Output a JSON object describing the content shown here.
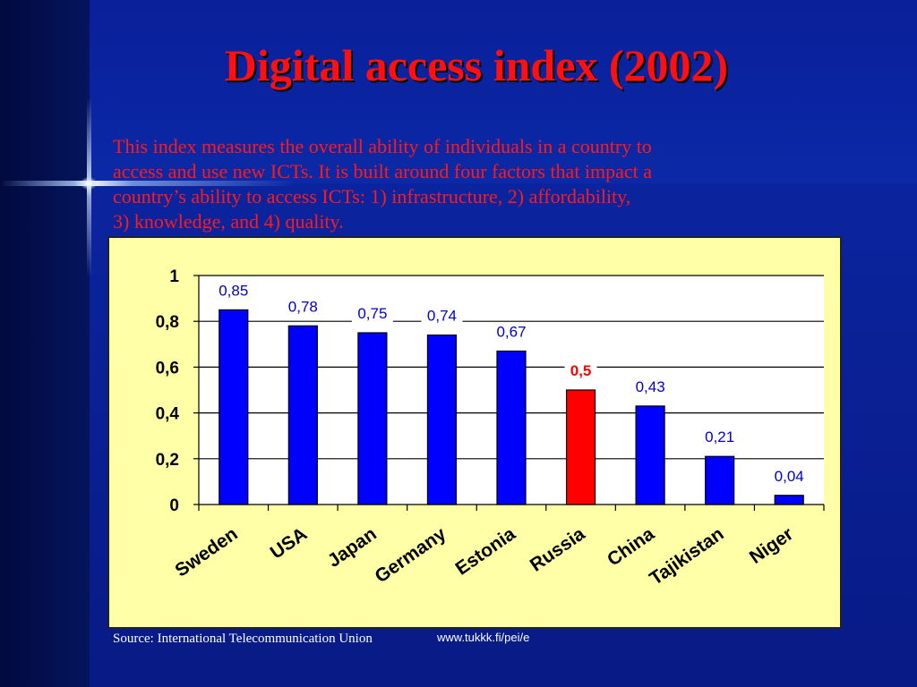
{
  "slide": {
    "title": "Digital access index (2002)",
    "description": "This index measures the overall ability of individuals in a country to\naccess and use new ICTs. It is built around four factors that impact a\ncountry’s ability to access ICTs: 1) infrastructure,  2) affordability,\n3) knowledge, and 4) quality.",
    "source": "Source: International Telecommunication Union",
    "url": "www.tukkk.fi/pei/e"
  },
  "colors": {
    "bar": "#0000ff",
    "highlight_bar": "#ff0000",
    "plot_background": "#ffffff",
    "chart_background": "#ffffa8",
    "label": "#0000cc",
    "highlight_label": "#ff0000"
  },
  "chart_data": {
    "type": "bar",
    "categories": [
      "Sweden",
      "USA",
      "Japan",
      "Germany",
      "Estonia",
      "Russia",
      "China",
      "Tajikistan",
      "Niger"
    ],
    "values": [
      0.85,
      0.78,
      0.75,
      0.74,
      0.67,
      0.5,
      0.43,
      0.21,
      0.04
    ],
    "value_labels": [
      "0,85",
      "0,78",
      "0,75",
      "0,74",
      "0,67",
      "0,5",
      "0,43",
      "0,21",
      "0,04"
    ],
    "highlight_index": 5,
    "ylim": [
      0,
      1
    ],
    "y_ticks": [
      0,
      0.2,
      0.4,
      0.6,
      0.8,
      1
    ],
    "y_tick_labels": [
      "0",
      "0,2",
      "0,4",
      "0,6",
      "0,8",
      "1"
    ],
    "grid": true,
    "legend": "none",
    "title": "",
    "xlabel": "",
    "ylabel": ""
  }
}
